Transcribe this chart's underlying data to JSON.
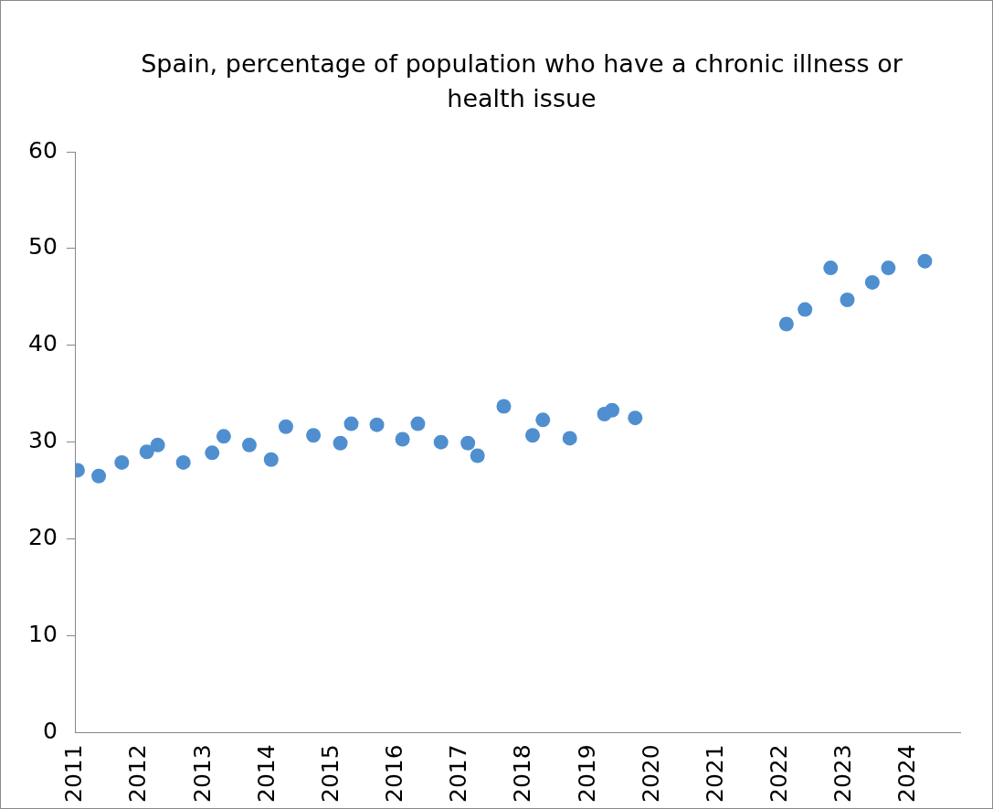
{
  "chart_data": {
    "type": "scatter",
    "title": "Spain, percentage of population who have a chronic illness or health issue",
    "x": [
      2011.03,
      2011.36,
      2011.72,
      2012.11,
      2012.28,
      2012.68,
      2013.13,
      2013.31,
      2013.71,
      2014.05,
      2014.28,
      2014.71,
      2015.13,
      2015.3,
      2015.7,
      2016.1,
      2016.34,
      2016.7,
      2017.12,
      2017.27,
      2017.68,
      2018.13,
      2018.29,
      2018.71,
      2019.25,
      2019.37,
      2019.73,
      2022.09,
      2022.38,
      2022.78,
      2023.04,
      2023.43,
      2023.68,
      2024.25
    ],
    "series": [
      {
        "color": "#4f8fd0",
        "values": [
          27.1,
          26.5,
          27.9,
          29.0,
          29.7,
          27.9,
          28.9,
          30.6,
          29.7,
          28.2,
          31.6,
          30.7,
          29.9,
          31.9,
          31.8,
          30.3,
          31.9,
          30.0,
          29.9,
          28.6,
          33.7,
          30.7,
          32.3,
          30.4,
          32.9,
          33.3,
          32.5,
          42.2,
          43.7,
          48.0,
          44.7,
          46.5,
          48.0,
          48.7
        ]
      }
    ],
    "xlim": [
      2011,
      2024.8
    ],
    "xticks": [
      2011,
      2012,
      2013,
      2014,
      2015,
      2016,
      2017,
      2018,
      2019,
      2020,
      2021,
      2022,
      2023,
      2024
    ],
    "ylim": [
      0,
      60
    ],
    "yticks": [
      0,
      10,
      20,
      30,
      40,
      50,
      60
    ],
    "grid": false,
    "legend": false,
    "marker": "circle"
  }
}
